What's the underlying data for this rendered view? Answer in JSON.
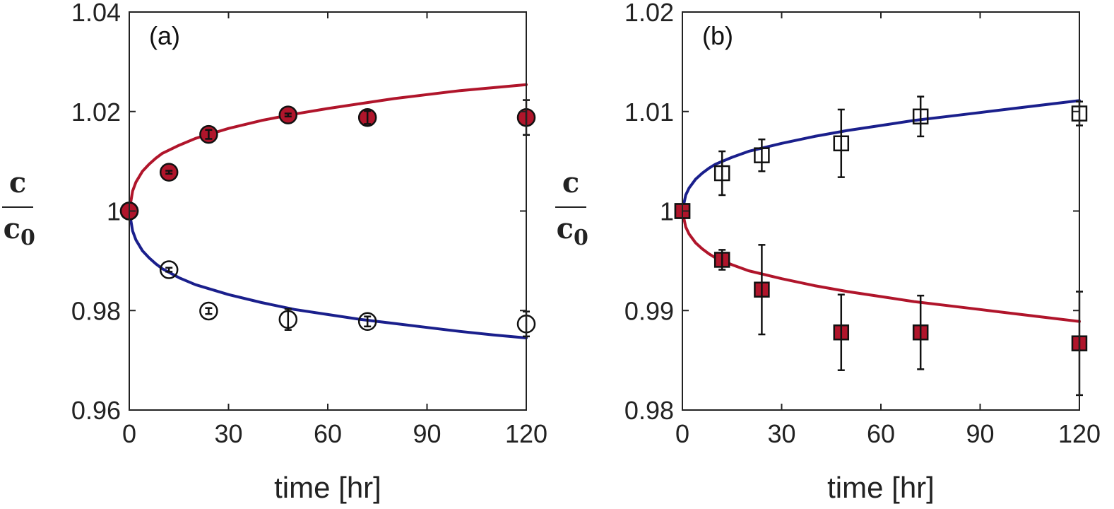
{
  "chart_data": [
    {
      "type": "scatter",
      "panel_label": "(a)",
      "xlabel": "time [hr]",
      "ylabel_num": "c",
      "ylabel_den": "c",
      "ylabel_den_sub": "0",
      "xlim": [
        0,
        120
      ],
      "ylim": [
        0.96,
        1.04
      ],
      "xticks": [
        0,
        30,
        60,
        90,
        120
      ],
      "xtick_labels": [
        "0",
        "30",
        "60",
        "90",
        "120"
      ],
      "yticks": [
        0.96,
        0.98,
        1.0,
        1.02,
        1.04
      ],
      "ytick_labels": [
        "0.96",
        "0.98",
        "1",
        "1.02",
        "1.04"
      ],
      "series": [
        {
          "name": "filled circles",
          "marker": "circle",
          "filled": true,
          "color": "#b0152b",
          "x": [
            0,
            12,
            24,
            48,
            72,
            120
          ],
          "y": [
            1.0,
            1.0078,
            1.0154,
            1.0193,
            1.0188,
            1.0188
          ],
          "err": [
            0,
            0.0003,
            0.0009,
            0.0003,
            0.0013,
            0.0035
          ]
        },
        {
          "name": "open circles",
          "marker": "circle",
          "filled": false,
          "color": "#111111",
          "x": [
            0,
            12,
            24,
            48,
            72,
            120
          ],
          "y": [
            1.0,
            0.9882,
            0.9799,
            0.9782,
            0.9778,
            0.9773
          ],
          "err": [
            0,
            0.0004,
            0.0006,
            0.0021,
            0.001,
            0.0025
          ]
        },
        {
          "name": "model upper",
          "marker": "line",
          "color": "#b0152b",
          "x": [
            0,
            1,
            2,
            4,
            6,
            8,
            10,
            15,
            20,
            30,
            40,
            50,
            60,
            70,
            80,
            90,
            100,
            110,
            120
          ],
          "y": [
            1.0,
            1.004,
            1.0058,
            1.008,
            1.0094,
            1.0106,
            1.0116,
            1.0132,
            1.0146,
            1.0166,
            1.0182,
            1.0195,
            1.0206,
            1.0216,
            1.0226,
            1.0234,
            1.0242,
            1.0248,
            1.0254
          ]
        },
        {
          "name": "model lower",
          "marker": "line",
          "color": "#1a1f8c",
          "x": [
            0,
            1,
            2,
            4,
            6,
            8,
            10,
            15,
            20,
            30,
            40,
            50,
            60,
            70,
            80,
            90,
            100,
            110,
            120
          ],
          "y": [
            1.0,
            0.996,
            0.9942,
            0.992,
            0.9906,
            0.9894,
            0.9884,
            0.9866,
            0.9852,
            0.9832,
            0.9816,
            0.9802,
            0.9792,
            0.9782,
            0.9774,
            0.9766,
            0.9758,
            0.9751,
            0.9745
          ]
        }
      ]
    },
    {
      "type": "scatter",
      "panel_label": "(b)",
      "xlabel": "time [hr]",
      "ylabel_num": "c",
      "ylabel_den": "c",
      "ylabel_den_sub": "0",
      "xlim": [
        0,
        120
      ],
      "ylim": [
        0.98,
        1.02
      ],
      "xticks": [
        0,
        30,
        60,
        90,
        120
      ],
      "xtick_labels": [
        "0",
        "30",
        "60",
        "90",
        "120"
      ],
      "yticks": [
        0.98,
        0.99,
        1.0,
        1.01,
        1.02
      ],
      "ytick_labels": [
        "0.98",
        "0.99",
        "1",
        "1.01",
        "1.02"
      ],
      "series": [
        {
          "name": "open squares",
          "marker": "square",
          "filled": false,
          "color": "#111111",
          "x": [
            0,
            12,
            24,
            48,
            72,
            120
          ],
          "y": [
            1.0,
            1.0038,
            1.0056,
            1.0068,
            1.0095,
            1.0098
          ],
          "err": [
            0,
            0.0022,
            0.0016,
            0.0034,
            0.002,
            0.0012
          ]
        },
        {
          "name": "filled squares",
          "marker": "square",
          "filled": true,
          "color": "#b0152b",
          "x": [
            0,
            12,
            24,
            48,
            72,
            120
          ],
          "y": [
            1.0,
            0.9951,
            0.9921,
            0.9878,
            0.9878,
            0.9867
          ],
          "err": [
            0,
            0.001,
            0.0045,
            0.0038,
            0.0037,
            0.0052
          ]
        },
        {
          "name": "model upper",
          "marker": "line",
          "color": "#1a1f8c",
          "x": [
            0,
            1,
            2,
            4,
            6,
            8,
            10,
            15,
            20,
            30,
            40,
            50,
            60,
            70,
            80,
            90,
            100,
            110,
            120
          ],
          "y": [
            1.0,
            1.0016,
            1.0023,
            1.0032,
            1.0038,
            1.0043,
            1.0047,
            1.0054,
            1.006,
            1.0068,
            1.0075,
            1.0081,
            1.0086,
            1.0091,
            1.0095,
            1.0099,
            1.0103,
            1.0107,
            1.0111
          ]
        },
        {
          "name": "model lower",
          "marker": "line",
          "color": "#b0152b",
          "x": [
            0,
            1,
            2,
            4,
            6,
            8,
            10,
            15,
            20,
            30,
            40,
            50,
            60,
            70,
            80,
            90,
            100,
            110,
            120
          ],
          "y": [
            1.0,
            0.9984,
            0.9977,
            0.9968,
            0.9962,
            0.9957,
            0.9953,
            0.9946,
            0.994,
            0.9932,
            0.9925,
            0.9919,
            0.9914,
            0.9909,
            0.9905,
            0.9901,
            0.9897,
            0.9893,
            0.9889
          ]
        }
      ]
    }
  ]
}
